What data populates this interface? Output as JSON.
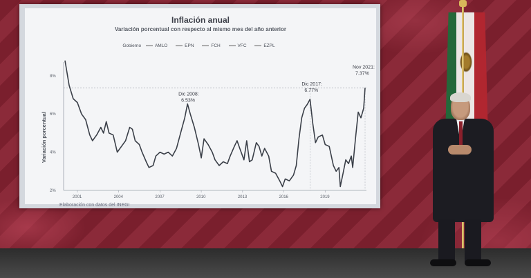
{
  "chart_data": {
    "type": "line",
    "title": "Inflación anual",
    "subtitle": "Variación porcentual con respecto al mismo mes del año anterior",
    "ylabel": "Variación porcentual",
    "legend": {
      "label": "Gobierno",
      "entries": [
        "AMLO",
        "EPN",
        "FCH",
        "VFC",
        "EZPL"
      ]
    },
    "x_tick_labels": [
      "2001",
      "2004",
      "2007",
      "2010",
      "2013",
      "2016",
      "2019"
    ],
    "y_tick_labels": [
      "2%",
      "4%",
      "6%",
      "8%"
    ],
    "ylim": [
      2,
      8.5
    ],
    "xlim": [
      2000.0,
      2022.0
    ],
    "series": [
      {
        "color": "#3a3f48",
        "points": [
          [
            2000.1,
            8.8
          ],
          [
            2000.4,
            7.5
          ],
          [
            2000.7,
            6.8
          ],
          [
            2001.0,
            6.6
          ],
          [
            2001.3,
            6.0
          ],
          [
            2001.6,
            5.7
          ],
          [
            2001.9,
            4.9
          ],
          [
            2002.1,
            4.6
          ],
          [
            2002.4,
            4.9
          ],
          [
            2002.7,
            5.3
          ],
          [
            2002.9,
            5.0
          ],
          [
            2003.1,
            5.6
          ],
          [
            2003.3,
            5.0
          ],
          [
            2003.6,
            4.9
          ],
          [
            2003.9,
            4.0
          ],
          [
            2004.2,
            4.3
          ],
          [
            2004.5,
            4.6
          ],
          [
            2004.8,
            5.3
          ],
          [
            2005.0,
            5.2
          ],
          [
            2005.2,
            4.6
          ],
          [
            2005.5,
            4.4
          ],
          [
            2005.7,
            4.0
          ],
          [
            2006.0,
            3.5
          ],
          [
            2006.2,
            3.2
          ],
          [
            2006.5,
            3.3
          ],
          [
            2006.7,
            3.8
          ],
          [
            2007.0,
            4.0
          ],
          [
            2007.3,
            3.9
          ],
          [
            2007.6,
            4.0
          ],
          [
            2007.9,
            3.8
          ],
          [
            2008.2,
            4.2
          ],
          [
            2008.5,
            5.0
          ],
          [
            2008.8,
            5.8
          ],
          [
            2009.0,
            6.53
          ],
          [
            2009.2,
            6.0
          ],
          [
            2009.5,
            5.3
          ],
          [
            2009.8,
            4.4
          ],
          [
            2010.0,
            3.7
          ],
          [
            2010.2,
            4.7
          ],
          [
            2010.5,
            4.4
          ],
          [
            2010.8,
            4.0
          ],
          [
            2011.0,
            3.6
          ],
          [
            2011.3,
            3.3
          ],
          [
            2011.6,
            3.5
          ],
          [
            2011.9,
            3.4
          ],
          [
            2012.1,
            3.8
          ],
          [
            2012.4,
            4.3
          ],
          [
            2012.6,
            4.6
          ],
          [
            2012.8,
            4.2
          ],
          [
            2013.1,
            3.6
          ],
          [
            2013.3,
            4.6
          ],
          [
            2013.5,
            3.5
          ],
          [
            2013.7,
            3.6
          ],
          [
            2014.0,
            4.5
          ],
          [
            2014.2,
            4.3
          ],
          [
            2014.4,
            3.8
          ],
          [
            2014.6,
            4.2
          ],
          [
            2014.9,
            3.8
          ],
          [
            2015.1,
            3.0
          ],
          [
            2015.4,
            2.9
          ],
          [
            2015.7,
            2.5
          ],
          [
            2015.9,
            2.2
          ],
          [
            2016.1,
            2.6
          ],
          [
            2016.4,
            2.5
          ],
          [
            2016.7,
            2.8
          ],
          [
            2016.9,
            3.3
          ],
          [
            2017.1,
            4.7
          ],
          [
            2017.3,
            5.8
          ],
          [
            2017.5,
            6.3
          ],
          [
            2017.7,
            6.5
          ],
          [
            2017.9,
            6.77
          ],
          [
            2018.1,
            5.5
          ],
          [
            2018.3,
            4.5
          ],
          [
            2018.5,
            4.8
          ],
          [
            2018.8,
            4.9
          ],
          [
            2019.0,
            4.4
          ],
          [
            2019.3,
            4.3
          ],
          [
            2019.6,
            3.3
          ],
          [
            2019.8,
            3.0
          ],
          [
            2020.0,
            3.2
          ],
          [
            2020.1,
            2.2
          ],
          [
            2020.3,
            2.9
          ],
          [
            2020.5,
            3.6
          ],
          [
            2020.7,
            3.4
          ],
          [
            2020.9,
            3.8
          ],
          [
            2021.0,
            3.2
          ],
          [
            2021.2,
            4.7
          ],
          [
            2021.4,
            6.1
          ],
          [
            2021.6,
            5.8
          ],
          [
            2021.8,
            6.3
          ],
          [
            2021.9,
            7.37
          ]
        ]
      }
    ],
    "annotations": [
      {
        "label": "Dic 2008:",
        "value": "6.53%",
        "x": 2008.95,
        "y": 6.53
      },
      {
        "label": "Dic 2017:",
        "value": "6.77%",
        "x": 2017.9,
        "y": 6.77
      },
      {
        "label": "Nov 2021:",
        "value": "7.37%",
        "x": 2021.9,
        "y": 7.37
      }
    ],
    "reference_line_y": 7.37,
    "grid": false
  },
  "footer": {
    "source": "Elaboración con datos del INEGI"
  },
  "colors": {
    "screen_bg": "#f4f5f7",
    "line": "#3a3f48",
    "backdrop": "#7a1f2d"
  }
}
